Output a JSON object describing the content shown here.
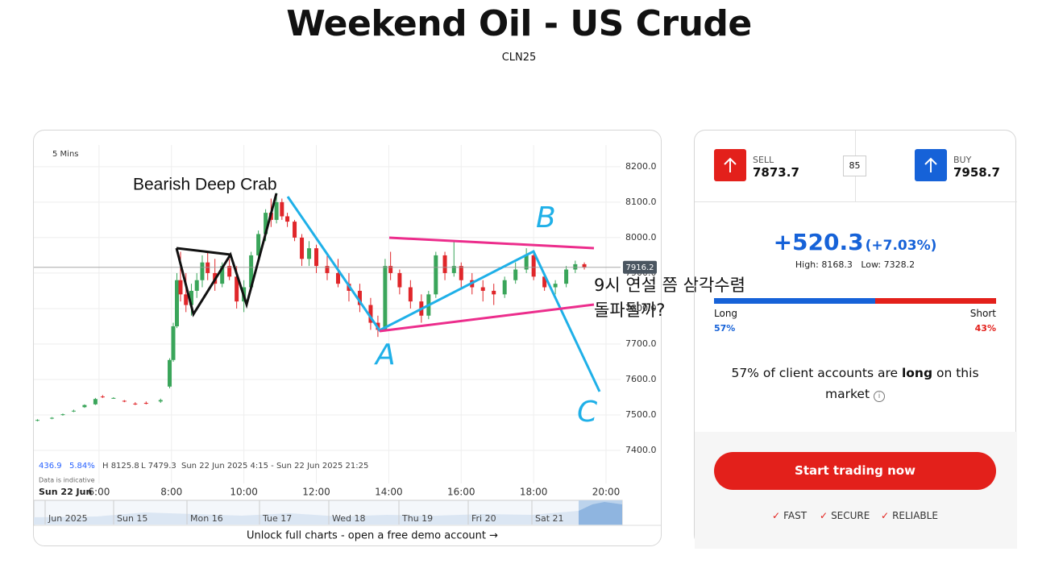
{
  "header": {
    "title": "Weekend Oil - US Crude",
    "symbol": "CLN25"
  },
  "chart_data": {
    "type": "candlestick",
    "interval": "5 Mins",
    "xlim": [
      4.2,
      20.4
    ],
    "xticks": [
      {
        "value": 6,
        "label": "6:00"
      },
      {
        "value": 8,
        "label": "8:00"
      },
      {
        "value": 10,
        "label": "10:00"
      },
      {
        "value": 12,
        "label": "12:00"
      },
      {
        "value": 14,
        "label": "14:00"
      },
      {
        "value": 16,
        "label": "16:00"
      },
      {
        "value": 18,
        "label": "18:00"
      },
      {
        "value": 20,
        "label": "20:00"
      }
    ],
    "date_label": "Sun 22 Jun",
    "ylim": [
      7307,
      8261
    ],
    "yticks": [
      {
        "value": 7400,
        "label": "7400.0"
      },
      {
        "value": 7500,
        "label": "7500.0"
      },
      {
        "value": 7600,
        "label": "7600.0"
      },
      {
        "value": 7700,
        "label": "7700.0"
      },
      {
        "value": 7800,
        "label": "7800.0"
      },
      {
        "value": 7900,
        "label": "7900.0"
      },
      {
        "value": 8000,
        "label": "8000.0"
      },
      {
        "value": 8100,
        "label": "8100.0"
      },
      {
        "value": 8200,
        "label": "8200.0"
      }
    ],
    "grid": true,
    "up_color": "#3aa55a",
    "down_color": "#e0262a",
    "last": {
      "value": 7916.2,
      "label": "7916.2"
    },
    "candles": [
      [
        4.3,
        7484,
        7488,
        7482,
        7486
      ],
      [
        4.7,
        7490,
        7494,
        7488,
        7492
      ],
      [
        5.0,
        7500,
        7504,
        7498,
        7502
      ],
      [
        5.3,
        7510,
        7515,
        7508,
        7512
      ],
      [
        5.6,
        7522,
        7530,
        7520,
        7528
      ],
      [
        5.9,
        7530,
        7548,
        7528,
        7545
      ],
      [
        6.1,
        7552,
        7556,
        7548,
        7550
      ],
      [
        6.4,
        7548,
        7550,
        7546,
        7548
      ],
      [
        6.7,
        7540,
        7542,
        7536,
        7538
      ],
      [
        7.0,
        7532,
        7536,
        7528,
        7530
      ],
      [
        7.3,
        7534,
        7538,
        7530,
        7532
      ],
      [
        7.7,
        7538,
        7546,
        7534,
        7542
      ],
      [
        7.95,
        7580,
        7660,
        7575,
        7655
      ],
      [
        8.05,
        7655,
        7760,
        7650,
        7750
      ],
      [
        8.15,
        7750,
        7900,
        7745,
        7880
      ],
      [
        8.25,
        7880,
        7960,
        7820,
        7840
      ],
      [
        8.4,
        7840,
        7900,
        7790,
        7810
      ],
      [
        8.55,
        7810,
        7870,
        7780,
        7850
      ],
      [
        8.7,
        7850,
        7900,
        7830,
        7880
      ],
      [
        8.85,
        7880,
        7950,
        7860,
        7930
      ],
      [
        9.0,
        7930,
        7960,
        7880,
        7900
      ],
      [
        9.2,
        7900,
        7940,
        7850,
        7870
      ],
      [
        9.4,
        7870,
        7930,
        7860,
        7920
      ],
      [
        9.6,
        7920,
        7940,
        7880,
        7890
      ],
      [
        9.8,
        7890,
        7920,
        7800,
        7820
      ],
      [
        10.0,
        7820,
        7880,
        7790,
        7860
      ],
      [
        10.2,
        7860,
        7960,
        7850,
        7950
      ],
      [
        10.4,
        7950,
        8020,
        7930,
        8010
      ],
      [
        10.6,
        8010,
        8080,
        7990,
        8070
      ],
      [
        10.75,
        8070,
        8110,
        8030,
        8050
      ],
      [
        10.9,
        8050,
        8126,
        8040,
        8100
      ],
      [
        11.05,
        8100,
        8110,
        8050,
        8060
      ],
      [
        11.2,
        8060,
        8070,
        8030,
        8045
      ],
      [
        11.4,
        8045,
        8050,
        7990,
        8000
      ],
      [
        11.6,
        8000,
        8010,
        7920,
        7940
      ],
      [
        11.8,
        7940,
        7990,
        7920,
        7970
      ],
      [
        12.0,
        7970,
        7980,
        7900,
        7920
      ],
      [
        12.3,
        7920,
        7950,
        7880,
        7900
      ],
      [
        12.6,
        7900,
        7940,
        7860,
        7870
      ],
      [
        12.9,
        7870,
        7900,
        7820,
        7850
      ],
      [
        13.2,
        7850,
        7870,
        7790,
        7810
      ],
      [
        13.5,
        7810,
        7830,
        7740,
        7760
      ],
      [
        13.7,
        7760,
        7780,
        7720,
        7740
      ],
      [
        13.9,
        7740,
        7940,
        7735,
        7920
      ],
      [
        14.05,
        7920,
        7960,
        7880,
        7900
      ],
      [
        14.3,
        7900,
        7910,
        7840,
        7860
      ],
      [
        14.6,
        7860,
        7880,
        7800,
        7820
      ],
      [
        14.9,
        7820,
        7840,
        7760,
        7780
      ],
      [
        15.1,
        7780,
        7850,
        7770,
        7840
      ],
      [
        15.3,
        7840,
        7960,
        7830,
        7950
      ],
      [
        15.55,
        7950,
        7960,
        7880,
        7900
      ],
      [
        15.8,
        7900,
        7990,
        7890,
        7920
      ],
      [
        16.0,
        7920,
        7930,
        7860,
        7880
      ],
      [
        16.3,
        7880,
        7900,
        7840,
        7860
      ],
      [
        16.6,
        7860,
        7880,
        7820,
        7850
      ],
      [
        16.9,
        7850,
        7870,
        7810,
        7840
      ],
      [
        17.2,
        7840,
        7890,
        7830,
        7880
      ],
      [
        17.5,
        7880,
        7930,
        7870,
        7910
      ],
      [
        17.8,
        7910,
        7970,
        7900,
        7950
      ],
      [
        18.0,
        7950,
        7960,
        7880,
        7890
      ],
      [
        18.3,
        7890,
        7900,
        7850,
        7860
      ],
      [
        18.6,
        7860,
        7880,
        7840,
        7870
      ],
      [
        18.9,
        7870,
        7920,
        7860,
        7910
      ],
      [
        19.15,
        7910,
        7935,
        7900,
        7925
      ],
      [
        19.4,
        7925,
        7930,
        7910,
        7916.2
      ]
    ],
    "info": [
      "436.9",
      "5.84%",
      "H 8125.8",
      "L 7479.3",
      "Sun 22 Jun 2025 4:15 - Sun 22 Jun 2025 21:25"
    ],
    "note": "Data is indicative",
    "navigator": [
      "Jun 2025",
      "Sun 15",
      "Mon 16",
      "Tue 17",
      "Wed 18",
      "Thu 19",
      "Fri 20",
      "Sat 21"
    ]
  },
  "annotations": {
    "pattern": "Bearish Deep Crab",
    "point_b": "B",
    "point_a": "A",
    "point_c": "C",
    "comment": [
      "9시 연설 쯤 삼각수렴",
      "돌파될까?"
    ]
  },
  "footer_link": "Unlock full charts - open a free demo account →",
  "trade": {
    "sell_label": "SELL",
    "sell_price": "7873.7",
    "spread": "85",
    "buy_label": "BUY",
    "buy_price": "7958.7",
    "change": "+520.3",
    "change_pct": "(+7.03%)",
    "high": "High: 8168.3",
    "low": "Low: 7328.2",
    "sentiment": {
      "long_label": "Long",
      "short_label": "Short",
      "long": 57,
      "short": 43,
      "long_text": "57%",
      "short_text": "43%"
    },
    "sentence": [
      "57% of client accounts are",
      "long",
      "on this",
      "market"
    ],
    "cta": "Start trading now",
    "features": [
      "FAST",
      "SECURE",
      "RELIABLE"
    ]
  }
}
